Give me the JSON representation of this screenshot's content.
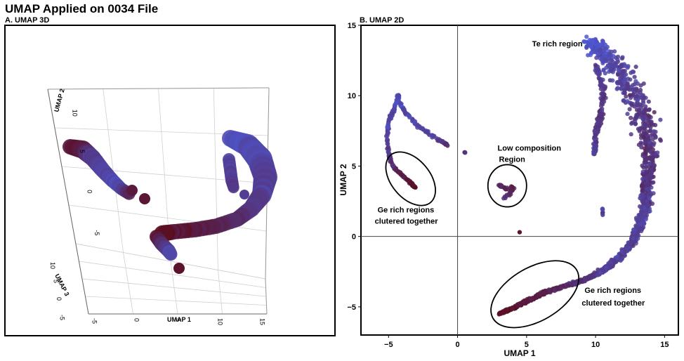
{
  "figure": {
    "title": "UMAP Applied on 0034 File",
    "panel_a_title": "A. UMAP 3D",
    "panel_b_title": "B. UMAP 2D"
  },
  "chart_data": [
    {
      "type": "scatter",
      "subtype": "3d",
      "title": "A. UMAP 3D",
      "xlabel": "UMAP 1",
      "ylabel": "UMAP 2",
      "zlabel": "UMAP 3",
      "x_ticks": [
        "-5",
        "0",
        "5",
        "10",
        "15"
      ],
      "y_ticks": [
        "10",
        "5",
        "0",
        "-5"
      ],
      "z_ticks": [
        "10",
        "5",
        "0",
        "-5"
      ],
      "grid": true,
      "colors": {
        "low": "#4d5ad6",
        "high": "#5c0a18"
      }
    },
    {
      "type": "scatter",
      "title": "B. UMAP 2D",
      "xlabel": "UMAP 1",
      "ylabel": "UMAP 2",
      "xlim": [
        -7,
        16
      ],
      "ylim": [
        -7,
        15
      ],
      "x_ticks": [
        -5,
        0,
        5,
        10,
        15
      ],
      "y_ticks": [
        -5,
        0,
        5,
        10,
        15
      ],
      "reference_lines": {
        "x": 0,
        "y": 0
      },
      "colors": {
        "low": "#4d5ad6",
        "high": "#5c0a18"
      },
      "annotations": [
        {
          "text": "Te rich region",
          "x": 5.4,
          "y": 13.5
        },
        {
          "text": "Low composition",
          "x": 2.9,
          "y": 6.1
        },
        {
          "text": "Region",
          "x": 3.0,
          "y": 5.3
        },
        {
          "text": "Ge rich regions",
          "x": -5.8,
          "y": 1.7
        },
        {
          "text": "clutered together",
          "x": -6.0,
          "y": 0.9
        },
        {
          "text": "Ge rich regions",
          "x": 9.2,
          "y": -4.0
        },
        {
          "text": "clutered together",
          "x": 9.0,
          "y": -4.9
        }
      ],
      "ellipses": [
        {
          "cx": -3.4,
          "cy": 4.1,
          "rx": 1.4,
          "ry": 2.2,
          "angle": -40
        },
        {
          "cx": 3.6,
          "cy": 3.6,
          "rx": 1.4,
          "ry": 1.5,
          "angle": 0
        },
        {
          "cx": 5.6,
          "cy": -4.1,
          "rx": 3.5,
          "ry": 1.9,
          "angle": -30
        }
      ],
      "clusters": [
        {
          "name": "te-rich-arc",
          "path": [
            [
              9.5,
              13.7
            ],
            [
              10.5,
              13.2
            ],
            [
              11.5,
              12.0
            ],
            [
              12.4,
              10.7
            ],
            [
              13.2,
              9.2
            ],
            [
              13.7,
              7.5
            ],
            [
              13.9,
              5.8
            ],
            [
              13.8,
              4.0
            ],
            [
              13.6,
              2.4
            ],
            [
              13.2,
              0.9
            ],
            [
              12.6,
              -0.5
            ],
            [
              11.7,
              -1.5
            ],
            [
              10.6,
              -2.4
            ],
            [
              9.2,
              -3.1
            ],
            [
              7.8,
              -3.5
            ],
            [
              6.3,
              -4.0
            ],
            [
              5.0,
              -4.6
            ],
            [
              4.0,
              -5.1
            ],
            [
              3.0,
              -5.5
            ]
          ],
          "width": [
            1.0,
            1.8,
            2.2,
            2.3,
            2.2,
            2.0,
            1.6,
            1.1,
            0.9,
            0.8,
            0.6,
            0.5,
            0.4,
            0.3,
            0.25,
            0.25,
            0.25,
            0.2,
            0.2
          ],
          "redness": [
            0.05,
            0.15,
            0.3,
            0.35,
            0.4,
            0.45,
            0.5,
            0.45,
            0.35,
            0.3,
            0.35,
            0.3,
            0.35,
            0.45,
            0.6,
            0.75,
            0.85,
            0.9,
            0.95
          ],
          "count": 1400
        },
        {
          "name": "inner-arc",
          "path": [
            [
              10.0,
              12.2
            ],
            [
              10.6,
              10.5
            ],
            [
              10.4,
              8.7
            ],
            [
              10.0,
              7.2
            ],
            [
              9.9,
              5.8
            ]
          ],
          "width": [
            0.3,
            0.4,
            0.5,
            0.4,
            0.2
          ],
          "redness": [
            0.3,
            0.4,
            0.5,
            0.4,
            0.3
          ],
          "count": 160
        },
        {
          "name": "left-hook",
          "path": [
            [
              -0.7,
              6.5
            ],
            [
              -1.6,
              7.0
            ],
            [
              -2.8,
              7.8
            ],
            [
              -3.7,
              8.7
            ],
            [
              -4.3,
              9.6
            ],
            [
              -4.3,
              10.0
            ],
            [
              -4.6,
              9.0
            ],
            [
              -5.0,
              8.2
            ],
            [
              -5.1,
              7.0
            ],
            [
              -5.0,
              5.9
            ],
            [
              -4.7,
              5.0
            ],
            [
              -4.1,
              4.4
            ],
            [
              -3.5,
              3.9
            ],
            [
              -3.1,
              3.5
            ]
          ],
          "width": [
            0.15,
            0.2,
            0.2,
            0.2,
            0.2,
            0.2,
            0.2,
            0.2,
            0.2,
            0.2,
            0.18,
            0.18,
            0.16,
            0.16
          ],
          "redness": [
            0.5,
            0.3,
            0.25,
            0.25,
            0.2,
            0.15,
            0.2,
            0.25,
            0.3,
            0.4,
            0.6,
            0.75,
            0.85,
            0.9
          ],
          "count": 320
        },
        {
          "name": "low-comp-blob",
          "path": [
            [
              3.0,
              3.7
            ],
            [
              3.5,
              3.4
            ],
            [
              4.0,
              3.5
            ],
            [
              3.8,
              3.0
            ],
            [
              3.3,
              2.7
            ]
          ],
          "width": [
            0.2,
            0.25,
            0.25,
            0.2,
            0.15
          ],
          "redness": [
            0.6,
            0.7,
            0.8,
            0.6,
            0.5
          ],
          "count": 40
        },
        {
          "name": "small-cluster-1",
          "path": [
            [
              0.5,
              6.0
            ],
            [
              0.6,
              5.9
            ]
          ],
          "width": [
            0.05,
            0.05
          ],
          "redness": [
            0.5,
            0.5
          ],
          "count": 5
        },
        {
          "name": "small-cluster-2",
          "path": [
            [
              10.5,
              2.0
            ],
            [
              10.5,
              1.5
            ]
          ],
          "width": [
            0.08,
            0.08
          ],
          "redness": [
            0.3,
            0.3
          ],
          "count": 8
        },
        {
          "name": "small-cluster-3",
          "path": [
            [
              4.5,
              0.3
            ],
            [
              4.5,
              0.3
            ]
          ],
          "width": [
            0.02,
            0.02
          ],
          "redness": [
            0.9,
            0.9
          ],
          "count": 2
        }
      ]
    }
  ]
}
